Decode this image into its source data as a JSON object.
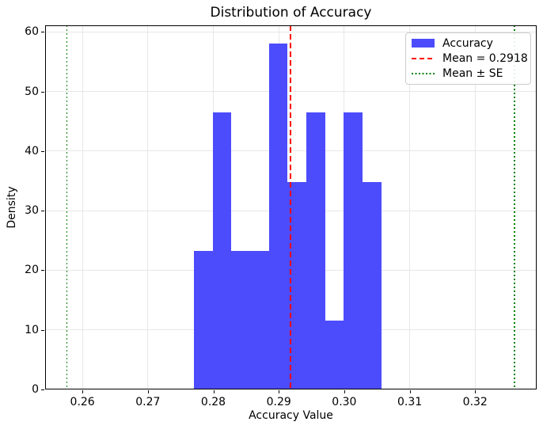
{
  "figure": {
    "title": "Distribution of Accuracy",
    "xlabel": "Accuracy Value",
    "ylabel": "Density"
  },
  "legend": {
    "position": "upper right",
    "items": [
      {
        "label": "Accuracy",
        "swatch": "patch",
        "color": "#4C4CFC"
      },
      {
        "label": "Mean = 0.2918",
        "swatch": "dashed-line",
        "color": "#FF0000"
      },
      {
        "label": "Mean ± SE",
        "swatch": "dotted-line",
        "color": "#008000"
      }
    ]
  },
  "chart_data": {
    "type": "bar",
    "subtype": "histogram-density",
    "title": "Distribution of Accuracy",
    "xlabel": "Accuracy Value",
    "ylabel": "Density",
    "grid": true,
    "bar_color": "#4C4CFC",
    "bin_edges": [
      0.277,
      0.2799,
      0.2827,
      0.2856,
      0.2885,
      0.2913,
      0.2942,
      0.2971,
      0.2999,
      0.3028,
      0.3057
    ],
    "densities": [
      23.24,
      46.49,
      23.24,
      23.24,
      58.11,
      34.86,
      46.49,
      11.62,
      46.49,
      34.86
    ],
    "counts": [
      2,
      4,
      2,
      2,
      5,
      3,
      4,
      1,
      4,
      3
    ],
    "mean": 0.2918,
    "se": 0.0342,
    "mean_line": {
      "x": 0.2918,
      "color": "#FF0000",
      "style": "dashed",
      "label": "Mean = 0.2918"
    },
    "se_lines": {
      "xs": [
        0.2576,
        0.326
      ],
      "color": "#008000",
      "style": "dotted",
      "label": "Mean ± SE"
    },
    "xlim": [
      0.2543,
      0.3294
    ],
    "ylim": [
      0,
      61.1
    ],
    "x_ticks": [
      0.26,
      0.27,
      0.28,
      0.29,
      0.3,
      0.31,
      0.32
    ],
    "x_tick_labels": [
      "0.26",
      "0.27",
      "0.28",
      "0.29",
      "0.30",
      "0.31",
      "0.32"
    ],
    "y_ticks": [
      0,
      10,
      20,
      30,
      40,
      50,
      60
    ],
    "y_tick_labels": [
      "0",
      "10",
      "20",
      "30",
      "40",
      "50",
      "60"
    ],
    "legend_position": "upper right"
  }
}
